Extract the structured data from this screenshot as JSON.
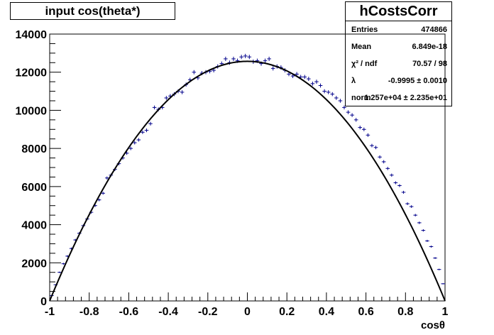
{
  "title": "input cos(theta*)",
  "stats": {
    "name": "hCostsCorr",
    "rows": [
      {
        "label": "Entries",
        "value": "474866"
      },
      {
        "label": "Mean",
        "value": "6.849e-18"
      },
      {
        "label": "χ² / ndf",
        "value": "70.57 / 98"
      },
      {
        "label": "λ",
        "value": "-0.9995 ± 0.0010"
      },
      {
        "label": "norm",
        "value": "1.257e+04 ± 2.235e+01"
      }
    ]
  },
  "colors": {
    "points": "#00008b",
    "fit": "#000000",
    "frame": "#000000"
  },
  "chart_data": {
    "type": "scatter",
    "title": "input cos(theta*)",
    "xlabel": "cosθ",
    "ylabel": "",
    "xlim": [
      -1,
      1
    ],
    "ylim": [
      0,
      14000
    ],
    "xticks": [
      -1,
      -0.8,
      -0.6,
      -0.4,
      -0.2,
      0,
      0.2,
      0.4,
      0.6,
      0.8,
      1
    ],
    "xtick_labels": [
      "-1",
      "-0.8",
      "-0.6",
      "-0.4",
      "-0.2",
      "0",
      "0.2",
      "0.4",
      "0.6",
      "0.8",
      "1"
    ],
    "yticks": [
      0,
      2000,
      4000,
      6000,
      8000,
      10000,
      12000,
      14000
    ],
    "ytick_labels": [
      "0",
      "2000",
      "4000",
      "6000",
      "8000",
      "10000",
      "12000",
      "14000"
    ],
    "grid": false,
    "bin_width": 0.02,
    "series": [
      {
        "kind": "points",
        "x": [
          -0.99,
          -0.97,
          -0.95,
          -0.93,
          -0.91,
          -0.89,
          -0.87,
          -0.85,
          -0.83,
          -0.81,
          -0.79,
          -0.77,
          -0.75,
          -0.73,
          -0.71,
          -0.69,
          -0.67,
          -0.65,
          -0.63,
          -0.61,
          -0.59,
          -0.57,
          -0.55,
          -0.53,
          -0.51,
          -0.49,
          -0.47,
          -0.45,
          -0.43,
          -0.41,
          -0.39,
          -0.37,
          -0.35,
          -0.33,
          -0.31,
          -0.29,
          -0.27,
          -0.25,
          -0.23,
          -0.21,
          -0.19,
          -0.17,
          -0.15,
          -0.13,
          -0.11,
          -0.09,
          -0.07,
          -0.05,
          -0.03,
          -0.01,
          0.01,
          0.03,
          0.05,
          0.07,
          0.09,
          0.11,
          0.13,
          0.15,
          0.17,
          0.19,
          0.21,
          0.23,
          0.25,
          0.27,
          0.29,
          0.31,
          0.33,
          0.35,
          0.37,
          0.39,
          0.41,
          0.43,
          0.45,
          0.47,
          0.49,
          0.51,
          0.53,
          0.55,
          0.57,
          0.59,
          0.61,
          0.63,
          0.65,
          0.67,
          0.69,
          0.71,
          0.73,
          0.75,
          0.77,
          0.79,
          0.81,
          0.83,
          0.85,
          0.87,
          0.89,
          0.91,
          0.93,
          0.95,
          0.97,
          0.99
        ],
        "y": [
          280,
          850,
          1500,
          1950,
          2350,
          2750,
          3200,
          3550,
          3950,
          4300,
          4650,
          5000,
          5300,
          5650,
          6450,
          6600,
          6900,
          7200,
          7500,
          7750,
          8000,
          8300,
          8450,
          8850,
          8950,
          9300,
          10150,
          10050,
          10150,
          10650,
          10750,
          10850,
          11000,
          10950,
          11350,
          11600,
          12000,
          11700,
          11950,
          12000,
          12050,
          12100,
          12300,
          12450,
          12700,
          12500,
          12700,
          12600,
          12800,
          12850,
          12800,
          12550,
          12600,
          12450,
          12600,
          12700,
          12200,
          12300,
          12250,
          12100,
          11900,
          11800,
          11900,
          11750,
          11750,
          11650,
          11400,
          11500,
          11300,
          11000,
          10950,
          10850,
          10650,
          10500,
          10150,
          9900,
          9750,
          9500,
          9100,
          9000,
          8700,
          8150,
          8050,
          7550,
          7300,
          6950,
          6600,
          6200,
          6050,
          5700,
          5100,
          4950,
          4500,
          4100,
          3700,
          3150,
          2850,
          2250,
          1650,
          900
        ]
      },
      {
        "kind": "fit",
        "function": "norm * (1 - cos²θ)",
        "norm": 12570,
        "lambda": -0.9995
      }
    ]
  }
}
